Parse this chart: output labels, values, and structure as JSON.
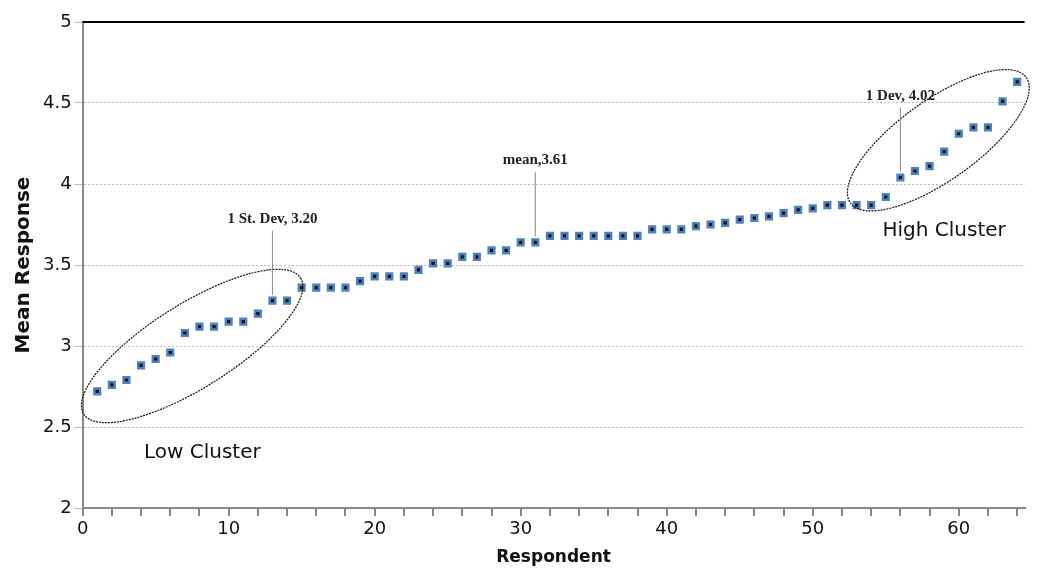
{
  "chart_data": {
    "type": "scatter",
    "xlabel": "Respondent",
    "ylabel": "Mean Response",
    "x": [
      1,
      2,
      3,
      4,
      5,
      6,
      7,
      8,
      9,
      10,
      11,
      12,
      13,
      14,
      15,
      16,
      17,
      18,
      19,
      20,
      21,
      22,
      23,
      24,
      25,
      26,
      27,
      28,
      29,
      30,
      31,
      32,
      33,
      34,
      35,
      36,
      37,
      38,
      39,
      40,
      41,
      42,
      43,
      44,
      45,
      46,
      47,
      48,
      49,
      50,
      51,
      52,
      53,
      54,
      55,
      56,
      57,
      58,
      59,
      60,
      61,
      62,
      63,
      64
    ],
    "series": [
      {
        "color": "#4f81bd",
        "values": [
          2.72,
          2.76,
          2.79,
          2.88,
          2.92,
          2.96,
          3.08,
          3.12,
          3.12,
          3.15,
          3.15,
          3.2,
          3.28,
          3.28,
          3.36,
          3.36,
          3.36,
          3.36,
          3.4,
          3.43,
          3.43,
          3.43,
          3.47,
          3.51,
          3.51,
          3.55,
          3.55,
          3.59,
          3.59,
          3.64,
          3.64,
          3.68,
          3.68,
          3.68,
          3.68,
          3.68,
          3.68,
          3.68,
          3.72,
          3.72,
          3.72,
          3.74,
          3.75,
          3.76,
          3.78,
          3.79,
          3.8,
          3.82,
          3.84,
          3.85,
          3.87,
          3.87,
          3.87,
          3.87,
          3.92,
          4.04,
          4.08,
          4.11,
          4.2,
          4.31,
          4.35,
          4.35,
          4.51,
          4.63
        ]
      }
    ],
    "xlim": [
      0,
      64.5
    ],
    "xticks": [
      0,
      {
        "value": 2,
        "label": null
      },
      {
        "value": 4,
        "label": null
      },
      {
        "value": 6,
        "label": null
      },
      {
        "value": 8,
        "label": null
      },
      10,
      {
        "value": 12,
        "label": null
      },
      {
        "value": 14,
        "label": null
      },
      {
        "value": 16,
        "label": null
      },
      {
        "value": 18,
        "label": null
      },
      20,
      {
        "value": 22,
        "label": null
      },
      {
        "value": 24,
        "label": null
      },
      {
        "value": 26,
        "label": null
      },
      {
        "value": 28,
        "label": null
      },
      30,
      {
        "value": 32,
        "label": null
      },
      {
        "value": 34,
        "label": null
      },
      {
        "value": 36,
        "label": null
      },
      {
        "value": 38,
        "label": null
      },
      40,
      {
        "value": 42,
        "label": null
      },
      {
        "value": 44,
        "label": null
      },
      {
        "value": 46,
        "label": null
      },
      {
        "value": 48,
        "label": null
      },
      50,
      {
        "value": 52,
        "label": null
      },
      {
        "value": 54,
        "label": null
      },
      {
        "value": 56,
        "label": null
      },
      {
        "value": 58,
        "label": null
      },
      60,
      {
        "value": 62,
        "label": null
      },
      {
        "value": 64,
        "label": null
      }
    ],
    "ylim": [
      2,
      5
    ],
    "yticks": [
      2,
      2.5,
      3,
      3.5,
      4,
      4.5,
      5
    ],
    "grid": "y",
    "marker": "square",
    "annotations": [
      {
        "text": "1 St. Dev, 3.20",
        "x": 13,
        "y": 3.28
      },
      {
        "text": "mean,3.61",
        "x": 31,
        "y": 3.64
      },
      {
        "text": "1 Dev, 4.02",
        "x": 56,
        "y": 4.04
      },
      "Low Cluster",
      "High Cluster"
    ]
  }
}
